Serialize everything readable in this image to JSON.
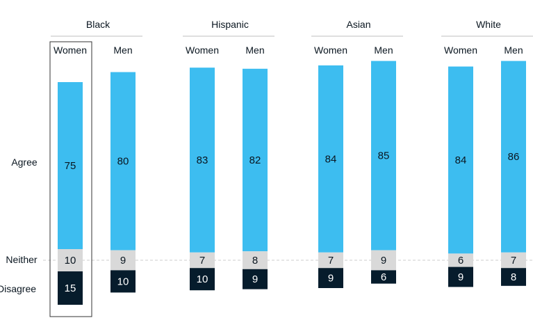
{
  "chart_data": {
    "type": "bar",
    "stacked": true,
    "groups": [
      {
        "name": "Black",
        "columns": [
          {
            "label": "Women",
            "agree": 75,
            "neither": 10,
            "disagree": 15,
            "highlighted": true
          },
          {
            "label": "Men",
            "agree": 80,
            "neither": 9,
            "disagree": 10
          }
        ]
      },
      {
        "name": "Hispanic",
        "columns": [
          {
            "label": "Women",
            "agree": 83,
            "neither": 7,
            "disagree": 10
          },
          {
            "label": "Men",
            "agree": 82,
            "neither": 8,
            "disagree": 9
          }
        ]
      },
      {
        "name": "Asian",
        "columns": [
          {
            "label": "Women",
            "agree": 84,
            "neither": 7,
            "disagree": 9
          },
          {
            "label": "Men",
            "agree": 85,
            "neither": 9,
            "disagree": 6
          }
        ]
      },
      {
        "name": "White",
        "columns": [
          {
            "label": "Women",
            "agree": 84,
            "neither": 6,
            "disagree": 9
          },
          {
            "label": "Men",
            "agree": 86,
            "neither": 7,
            "disagree": 8
          }
        ]
      }
    ],
    "row_labels": {
      "agree": "Agree",
      "neither": "Neither",
      "disagree": "Disagree"
    },
    "colors": {
      "agree": "#3dbdf0",
      "neither": "#d9d9d9",
      "disagree": "#061c2c",
      "label_dark": "#0a1620",
      "label_light": "#ffffff",
      "rule": "#bfbfbf",
      "baseline": "#cccccc"
    }
  }
}
